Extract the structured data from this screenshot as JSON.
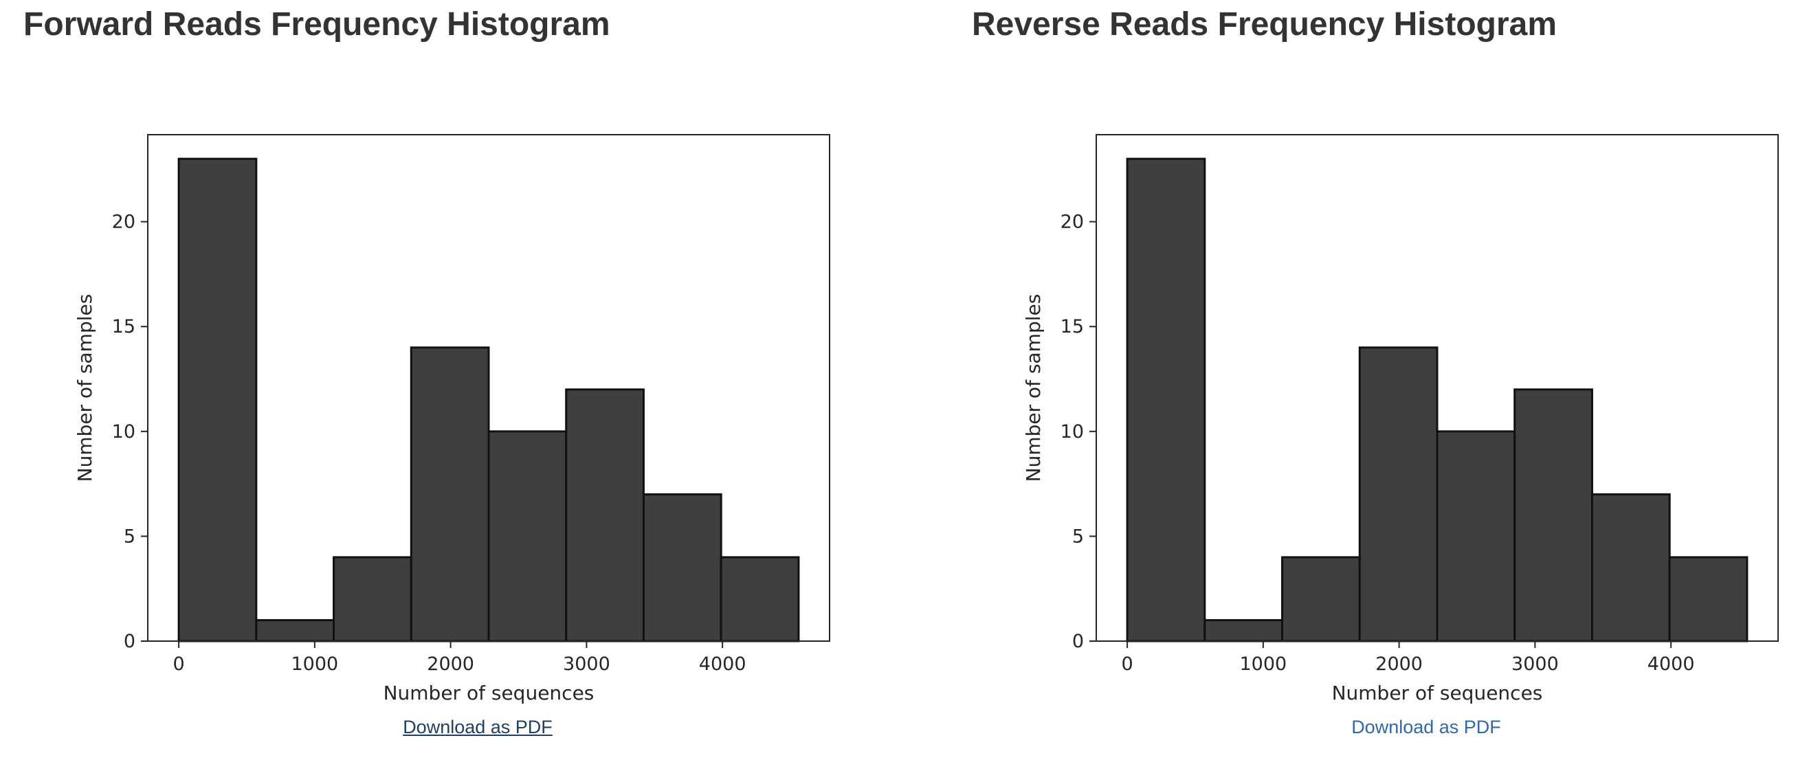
{
  "panels": [
    {
      "title": "Forward Reads Frequency Histogram",
      "download_label": "Download as PDF"
    },
    {
      "title": "Reverse Reads Frequency Histogram",
      "download_label": "Download as PDF"
    }
  ],
  "colors": {
    "bar_fill": "#3f3f3f",
    "bar_edge": "#111111",
    "axis": "#262626",
    "link": "#2f6aa8",
    "link_visited": "#1f3f66",
    "title": "#333333"
  },
  "chart_data": [
    {
      "type": "bar",
      "title": "Forward Reads Frequency Histogram",
      "xlabel": "Number of sequences",
      "ylabel": "Number of samples",
      "bins": [
        {
          "start": 0,
          "end": 570,
          "value": 23
        },
        {
          "start": 570,
          "end": 1140,
          "value": 1
        },
        {
          "start": 1140,
          "end": 1710,
          "value": 4
        },
        {
          "start": 1710,
          "end": 2280,
          "value": 14
        },
        {
          "start": 2280,
          "end": 2850,
          "value": 10
        },
        {
          "start": 2850,
          "end": 3420,
          "value": 12
        },
        {
          "start": 3420,
          "end": 3990,
          "value": 7
        },
        {
          "start": 3990,
          "end": 4560,
          "value": 4
        }
      ],
      "xlim": [
        -228,
        4788
      ],
      "ylim": [
        0,
        24.15
      ],
      "xticks": [
        0,
        1000,
        2000,
        3000,
        4000
      ],
      "yticks": [
        0,
        5,
        10,
        15,
        20
      ],
      "grid": false
    },
    {
      "type": "bar",
      "title": "Reverse Reads Frequency Histogram",
      "xlabel": "Number of sequences",
      "ylabel": "Number of samples",
      "bins": [
        {
          "start": 0,
          "end": 570,
          "value": 23
        },
        {
          "start": 570,
          "end": 1140,
          "value": 1
        },
        {
          "start": 1140,
          "end": 1710,
          "value": 4
        },
        {
          "start": 1710,
          "end": 2280,
          "value": 14
        },
        {
          "start": 2280,
          "end": 2850,
          "value": 10
        },
        {
          "start": 2850,
          "end": 3420,
          "value": 12
        },
        {
          "start": 3420,
          "end": 3990,
          "value": 7
        },
        {
          "start": 3990,
          "end": 4560,
          "value": 4
        }
      ],
      "xlim": [
        -228,
        4788
      ],
      "ylim": [
        0,
        24.15
      ],
      "xticks": [
        0,
        1000,
        2000,
        3000,
        4000
      ],
      "yticks": [
        0,
        5,
        10,
        15,
        20
      ],
      "grid": false
    }
  ]
}
